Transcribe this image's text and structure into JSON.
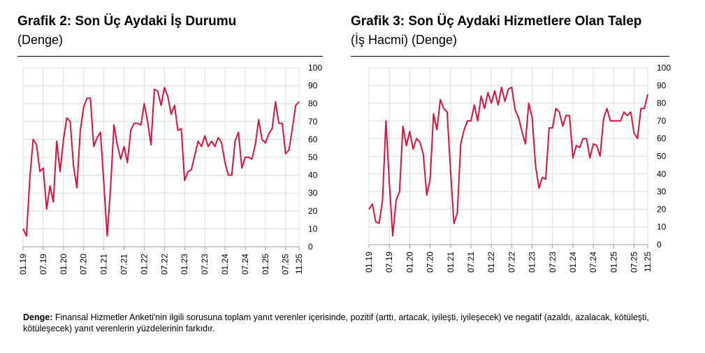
{
  "note": {
    "label": "Denge:",
    "text": "Finansal Hizmetler Anketi'nin ilgili sorusuna toplam yanıt verenler içerisinde, pozitif (arttı, artacak, iyileşti, iyileşecek) ve negatif (azaldı, azalacak, kötüleşti, kötüleşecek) yanıt verenlerin yüzdelerinin farkıdır."
  },
  "line_color": "#d6143c",
  "chart_data": [
    {
      "type": "line",
      "title": "Grafik 2: Son Üç Aydaki İş Durumu",
      "subtitle": "(Denge)",
      "ylim": [
        0,
        100
      ],
      "yticks": [
        0,
        10,
        20,
        30,
        40,
        50,
        60,
        70,
        80,
        90,
        100
      ],
      "xticks": [
        "01.19",
        "07.19",
        "01.20",
        "07.20",
        "01.21",
        "07.21",
        "01.22",
        "07.22",
        "01.23",
        "07.23",
        "01.24",
        "07.24",
        "01.25",
        "07.25",
        "11.25"
      ],
      "grid": true,
      "values": [
        10,
        6,
        38,
        60,
        57,
        42,
        44,
        21,
        34,
        25,
        59,
        42,
        60,
        72,
        70,
        45,
        33,
        65,
        78,
        83,
        83,
        56,
        61,
        64,
        35,
        6,
        33,
        68,
        57,
        49,
        56,
        47,
        65,
        69,
        69,
        68,
        80,
        70,
        57,
        88,
        87,
        79,
        89,
        84,
        74,
        79,
        65,
        66,
        37,
        42,
        43,
        51,
        59,
        56,
        62,
        56,
        59,
        56,
        61,
        58,
        47,
        40,
        40,
        59,
        64,
        44,
        50,
        50,
        49,
        57,
        71,
        60,
        58,
        63,
        66,
        81,
        69,
        69,
        52,
        54,
        66,
        79,
        81
      ]
    },
    {
      "type": "line",
      "title": "Grafik 3: Son Üç Aydaki Hizmetlere Olan Talep",
      "subtitle": "(İş Hacmi) (Denge)",
      "ylim": [
        0,
        100
      ],
      "yticks": [
        0,
        10,
        20,
        30,
        40,
        50,
        60,
        70,
        80,
        90,
        100
      ],
      "xticks": [
        "01.19",
        "07.19",
        "01.20",
        "07.20",
        "01.21",
        "07.21",
        "01.22",
        "07.22",
        "01.23",
        "07.23",
        "01.24",
        "07.24",
        "01.25",
        "07.25",
        "11.25"
      ],
      "grid": true,
      "values": [
        20,
        23,
        13,
        12,
        25,
        70,
        35,
        5,
        25,
        30,
        67,
        56,
        64,
        54,
        60,
        58,
        51,
        28,
        37,
        74,
        65,
        82,
        77,
        75,
        42,
        12,
        18,
        57,
        65,
        70,
        70,
        79,
        70,
        84,
        77,
        86,
        80,
        87,
        79,
        89,
        81,
        88,
        89,
        76,
        72,
        64,
        57,
        80,
        72,
        45,
        32,
        38,
        37,
        66,
        66,
        77,
        75,
        67,
        73,
        73,
        49,
        56,
        55,
        60,
        60,
        49,
        57,
        56,
        50,
        71,
        77,
        70,
        70,
        70,
        70,
        75,
        73,
        75,
        63,
        60,
        77,
        77,
        85
      ]
    }
  ]
}
